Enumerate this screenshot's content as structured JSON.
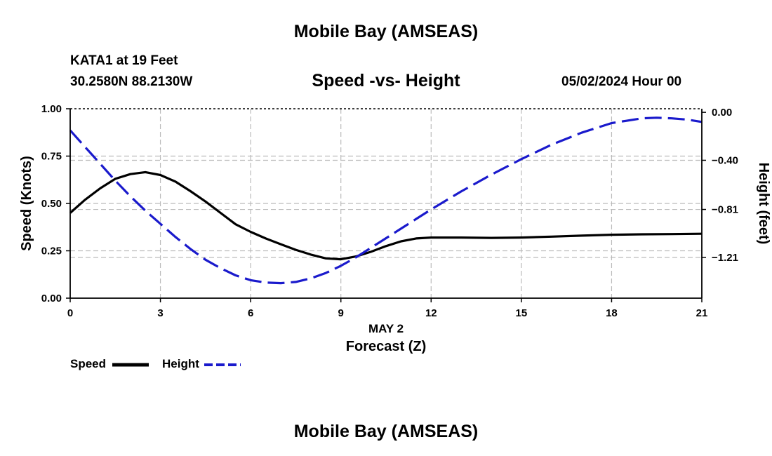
{
  "page": {
    "title": "Mobile Bay (AMSEAS)",
    "station": "KATA1 at 19 Feet",
    "coordinates": "30.2580N  88.2130W",
    "subtitle": "Speed -vs- Height",
    "datetime": "05/02/2024 Hour 00",
    "footer_title": "Mobile Bay (AMSEAS)"
  },
  "legend": {
    "speed_label": "Speed",
    "height_label": "Height"
  },
  "colors": {
    "speed": "#000000",
    "height": "#1a1acc",
    "grid": "#bbbbbb"
  },
  "chart_data": {
    "type": "line",
    "title": "Speed -vs- Height",
    "xlabel": "Forecast (Z)",
    "x_sublabel": "MAY 2",
    "ylabel": "Speed (Knots)",
    "y2label": "Height (feet)",
    "xlim": [
      0,
      21
    ],
    "ylim": [
      0,
      1
    ],
    "y2lim": [
      -1.55,
      0.03
    ],
    "x_ticks": [
      0,
      3,
      6,
      9,
      12,
      15,
      18,
      21
    ],
    "x_tick_labels": [
      "0",
      "3",
      "6",
      "9",
      "12",
      "15",
      "18",
      "21"
    ],
    "y_ticks": [
      0,
      0.25,
      0.5,
      0.75,
      1.0
    ],
    "y_tick_labels": [
      "0.00",
      "0.25",
      "0.50",
      "0.75",
      "1.00"
    ],
    "y2_ticks": [
      0.0,
      -0.4,
      -0.81,
      -1.21
    ],
    "y2_tick_labels": [
      "0.00",
      "−0.40",
      "−0.81",
      "−1.21"
    ],
    "grid": true,
    "series": [
      {
        "name": "Speed",
        "axis": "left",
        "style": "solid",
        "x": [
          0,
          0.5,
          1,
          1.5,
          2,
          2.5,
          3,
          3.5,
          4,
          4.5,
          5,
          5.5,
          6,
          6.5,
          7,
          7.5,
          8,
          8.5,
          9,
          9.5,
          10,
          10.5,
          11,
          11.5,
          12,
          13,
          14,
          15,
          16,
          17,
          18,
          19,
          20,
          21
        ],
        "values": [
          0.45,
          0.52,
          0.58,
          0.63,
          0.655,
          0.665,
          0.65,
          0.615,
          0.565,
          0.51,
          0.45,
          0.39,
          0.35,
          0.315,
          0.285,
          0.255,
          0.23,
          0.21,
          0.205,
          0.22,
          0.245,
          0.275,
          0.3,
          0.315,
          0.32,
          0.32,
          0.318,
          0.32,
          0.325,
          0.33,
          0.335,
          0.337,
          0.338,
          0.34
        ]
      },
      {
        "name": "Height",
        "axis": "right",
        "style": "dashed",
        "x": [
          0,
          0.5,
          1,
          1.5,
          2,
          2.5,
          3,
          3.5,
          4,
          4.5,
          5,
          5.5,
          6,
          6.5,
          7,
          7.5,
          8,
          8.5,
          9,
          9.5,
          10,
          11,
          12,
          13,
          14,
          15,
          16,
          17,
          18,
          19,
          19.5,
          20,
          20.5,
          21
        ],
        "values": [
          -0.15,
          -0.29,
          -0.43,
          -0.57,
          -0.7,
          -0.82,
          -0.93,
          -1.04,
          -1.14,
          -1.23,
          -1.3,
          -1.36,
          -1.4,
          -1.42,
          -1.425,
          -1.415,
          -1.385,
          -1.34,
          -1.28,
          -1.21,
          -1.13,
          -0.97,
          -0.81,
          -0.66,
          -0.52,
          -0.39,
          -0.27,
          -0.17,
          -0.09,
          -0.05,
          -0.045,
          -0.05,
          -0.06,
          -0.08
        ]
      }
    ]
  }
}
